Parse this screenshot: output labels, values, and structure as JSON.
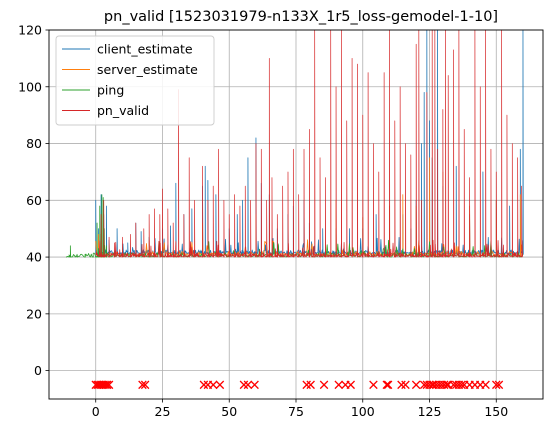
{
  "chart_data": {
    "type": "line",
    "title": "pn_valid [1523031979-n133X_1r5_loss-gemodel-1-10]",
    "xlabel": "",
    "ylabel": "",
    "xlim": [
      -17.5,
      167.5
    ],
    "ylim": [
      -10,
      120
    ],
    "xticks": [
      0,
      25,
      50,
      75,
      100,
      125,
      150
    ],
    "yticks": [
      0,
      20,
      40,
      60,
      80,
      100,
      120
    ],
    "grid": true,
    "legend_position": "top-left",
    "series": [
      {
        "name": "client_estimate",
        "color": "#1f77b4",
        "baseline": 41,
        "start_x": 0,
        "end_x": 160,
        "points": [
          [
            0,
            60
          ],
          [
            1,
            50
          ],
          [
            2,
            62
          ],
          [
            3,
            55
          ],
          [
            4,
            58
          ],
          [
            5,
            46
          ],
          [
            8,
            50
          ],
          [
            12,
            45
          ],
          [
            15,
            52
          ],
          [
            17,
            49
          ],
          [
            20,
            47
          ],
          [
            25,
            50
          ],
          [
            28,
            51
          ],
          [
            30,
            66
          ],
          [
            33,
            55
          ],
          [
            36,
            57
          ],
          [
            40,
            65
          ],
          [
            41,
            72
          ],
          [
            42,
            67
          ],
          [
            45,
            62
          ],
          [
            50,
            50
          ],
          [
            53,
            55
          ],
          [
            55,
            60
          ],
          [
            57,
            75
          ],
          [
            60,
            82
          ],
          [
            62,
            66
          ],
          [
            65,
            62
          ],
          [
            68,
            50
          ],
          [
            72,
            55
          ],
          [
            74,
            58
          ],
          [
            78,
            60
          ],
          [
            80,
            52
          ],
          [
            85,
            50
          ],
          [
            90,
            50
          ],
          [
            95,
            50
          ],
          [
            100,
            50
          ],
          [
            105,
            55
          ],
          [
            110,
            50
          ],
          [
            115,
            55
          ],
          [
            118,
            50
          ],
          [
            120,
            60
          ],
          [
            122,
            80
          ],
          [
            123,
            98
          ],
          [
            124,
            120
          ],
          [
            125,
            88
          ],
          [
            126,
            75
          ],
          [
            128,
            120
          ],
          [
            130,
            65
          ],
          [
            135,
            72
          ],
          [
            140,
            55
          ],
          [
            145,
            70
          ],
          [
            150,
            60
          ],
          [
            155,
            58
          ],
          [
            159,
            78
          ],
          [
            160,
            120
          ]
        ]
      },
      {
        "name": "server_estimate",
        "color": "#ff7f0e",
        "baseline": 40.5,
        "start_x": 0,
        "end_x": 160,
        "points": [
          [
            1,
            48
          ],
          [
            3,
            44
          ],
          [
            20,
            46
          ],
          [
            40,
            52
          ],
          [
            60,
            55
          ],
          [
            90,
            60
          ],
          [
            100,
            54
          ],
          [
            110,
            58
          ],
          [
            115,
            62
          ],
          [
            120,
            58
          ],
          [
            125,
            75
          ],
          [
            130,
            70
          ],
          [
            140,
            58
          ],
          [
            150,
            60
          ],
          [
            159,
            62
          ]
        ]
      },
      {
        "name": "ping",
        "color": "#2ca02c",
        "baseline": 40,
        "start_x": -11,
        "end_x": 160,
        "points": [
          [
            -11,
            40
          ],
          [
            -10,
            40
          ],
          [
            -9.5,
            44
          ],
          [
            -9,
            40
          ],
          [
            -7,
            41
          ],
          [
            -4,
            41
          ],
          [
            -1,
            40.5
          ],
          [
            0,
            40
          ],
          [
            0.5,
            52
          ],
          [
            1,
            43
          ],
          [
            1.5,
            58
          ],
          [
            2,
            48
          ],
          [
            2.3,
            62
          ],
          [
            2.8,
            61
          ],
          [
            3.2,
            50
          ],
          [
            4,
            44
          ],
          [
            5,
            41
          ]
        ]
      },
      {
        "name": "pn_valid",
        "color": "#d62728",
        "baseline": 40,
        "start_x": 0,
        "end_x": 160,
        "points": [
          [
            2,
            55
          ],
          [
            3,
            60
          ],
          [
            5,
            47
          ],
          [
            7,
            45
          ],
          [
            10,
            47
          ],
          [
            13,
            48
          ],
          [
            15,
            52
          ],
          [
            18,
            50
          ],
          [
            20,
            55
          ],
          [
            22,
            57
          ],
          [
            24,
            55
          ],
          [
            25,
            64
          ],
          [
            27,
            57
          ],
          [
            29,
            52
          ],
          [
            31,
            99
          ],
          [
            33,
            55
          ],
          [
            35,
            75
          ],
          [
            37,
            60
          ],
          [
            40,
            72
          ],
          [
            42,
            60
          ],
          [
            44,
            65
          ],
          [
            46,
            78
          ],
          [
            48,
            60
          ],
          [
            50,
            55
          ],
          [
            52,
            62
          ],
          [
            54,
            58
          ],
          [
            56,
            65
          ],
          [
            58,
            60
          ],
          [
            60,
            80
          ],
          [
            62,
            78
          ],
          [
            64,
            60
          ],
          [
            65,
            110
          ],
          [
            66,
            68
          ],
          [
            68,
            55
          ],
          [
            70,
            65
          ],
          [
            72,
            70
          ],
          [
            74,
            78
          ],
          [
            76,
            62
          ],
          [
            78,
            78
          ],
          [
            80,
            85
          ],
          [
            82,
            120
          ],
          [
            84,
            75
          ],
          [
            86,
            68
          ],
          [
            88,
            120
          ],
          [
            90,
            100
          ],
          [
            92,
            120
          ],
          [
            94,
            88
          ],
          [
            96,
            110
          ],
          [
            98,
            108
          ],
          [
            100,
            90
          ],
          [
            102,
            105
          ],
          [
            104,
            80
          ],
          [
            106,
            70
          ],
          [
            108,
            105
          ],
          [
            110,
            120
          ],
          [
            112,
            88
          ],
          [
            114,
            100
          ],
          [
            116,
            80
          ],
          [
            118,
            76
          ],
          [
            120,
            115
          ],
          [
            121,
            120
          ],
          [
            122,
            60
          ],
          [
            124,
            98
          ],
          [
            126,
            120
          ],
          [
            127,
            120
          ],
          [
            128,
            78
          ],
          [
            130,
            92
          ],
          [
            131,
            120
          ],
          [
            132,
            104
          ],
          [
            134,
            113
          ],
          [
            136,
            120
          ],
          [
            138,
            85
          ],
          [
            140,
            68
          ],
          [
            142,
            120
          ],
          [
            144,
            100
          ],
          [
            146,
            120
          ],
          [
            148,
            78
          ],
          [
            150,
            70
          ],
          [
            152,
            120
          ],
          [
            154,
            90
          ],
          [
            156,
            80
          ],
          [
            158,
            75
          ],
          [
            159.5,
            65
          ]
        ]
      }
    ],
    "markers": {
      "shape": "x",
      "color": "#ff0000",
      "y": -5,
      "x": [
        0,
        0.7,
        1.3,
        2,
        2.5,
        3,
        3.7,
        4.3,
        5,
        17.5,
        18.5,
        40.5,
        42,
        44,
        46.5,
        55.5,
        57,
        59.5,
        79,
        80.5,
        85.5,
        91,
        93.5,
        95.5,
        104,
        109,
        109.5,
        114.5,
        116,
        120,
        123,
        124,
        125,
        126,
        126.5,
        127.5,
        128.5,
        129.5,
        130.5,
        131.5,
        132,
        134,
        135,
        136,
        137,
        138,
        140,
        142,
        144,
        146,
        150,
        151
      ]
    }
  }
}
